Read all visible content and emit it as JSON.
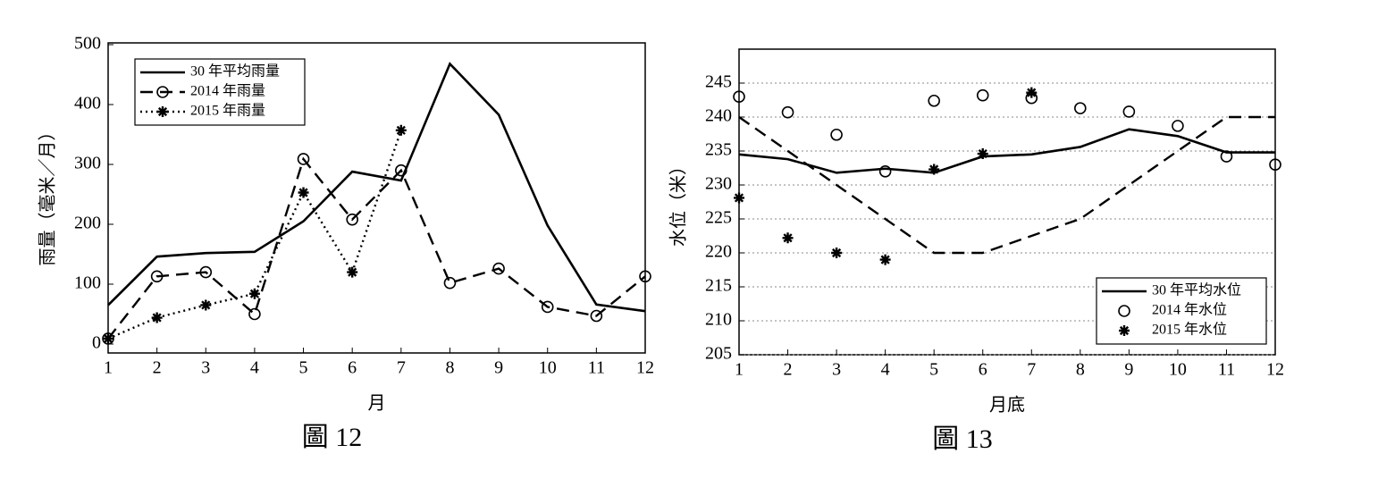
{
  "chart_data": [
    {
      "type": "line",
      "caption": "圖 12",
      "xlabel": "月",
      "ylabel": "雨量（毫米／月）",
      "x": [
        1,
        2,
        3,
        4,
        5,
        6,
        7,
        8,
        9,
        10,
        11,
        12
      ],
      "xlim": [
        1,
        12
      ],
      "xticks": [
        1,
        2,
        3,
        4,
        5,
        6,
        7,
        8,
        9,
        10,
        11,
        12
      ],
      "ylim": [
        0,
        500
      ],
      "yticks": [
        0,
        100,
        200,
        300,
        400,
        500
      ],
      "grid": false,
      "legend": "upper left",
      "series": [
        {
          "name": "30 年平均雨量",
          "color": "#000000",
          "line": "solid",
          "marker": "none",
          "values": [
            65,
            146,
            152,
            154,
            205,
            288,
            273,
            468,
            383,
            198,
            66,
            55
          ]
        },
        {
          "name": "2014 年雨量",
          "color": "#000000",
          "line": "dashed",
          "marker": "circle",
          "values": [
            9,
            113,
            120,
            50,
            309,
            208,
            290,
            102,
            126,
            62,
            47,
            113
          ]
        },
        {
          "name": "2015 年雨量",
          "color": "#000000",
          "line": "dotted",
          "marker": "star",
          "values": [
            9,
            44,
            65,
            84,
            253,
            120,
            357,
            null,
            null,
            null,
            null,
            null
          ]
        }
      ]
    },
    {
      "type": "line",
      "caption": "圖 13",
      "xlabel": "月底",
      "ylabel": "水位（米）",
      "x": [
        1,
        2,
        3,
        4,
        5,
        6,
        7,
        8,
        9,
        10,
        11,
        12
      ],
      "xlim": [
        1,
        12
      ],
      "xticks": [
        1,
        2,
        3,
        4,
        5,
        6,
        7,
        8,
        9,
        10,
        11,
        12
      ],
      "ylim": [
        205,
        250
      ],
      "yticks": [
        205,
        210,
        215,
        220,
        225,
        230,
        235,
        240,
        245
      ],
      "grid": true,
      "legend": "lower right",
      "series": [
        {
          "name": "30 年平均水位",
          "color": "#000000",
          "line": "solid",
          "marker": "none",
          "values": [
            234.5,
            233.8,
            231.8,
            232.4,
            231.8,
            234.2,
            234.5,
            235.6,
            238.2,
            237.2,
            234.8,
            234.8
          ]
        },
        {
          "color": "#000000",
          "line": "dashed",
          "marker": "none",
          "values": [
            240,
            235,
            230,
            225,
            220,
            220,
            222.5,
            225,
            230,
            235,
            240,
            240
          ]
        },
        {
          "name": "2014 年水位",
          "color": "#000000",
          "line": "none",
          "marker": "circle",
          "values": [
            243,
            240.7,
            237.4,
            232,
            242.4,
            243.2,
            242.8,
            241.3,
            240.8,
            238.7,
            234.2,
            233
          ]
        },
        {
          "name": "2015 年水位",
          "color": "#000000",
          "line": "none",
          "marker": "star",
          "values": [
            228.1,
            222.2,
            220,
            219,
            232.3,
            234.6,
            243.6,
            null,
            null,
            null,
            null,
            null
          ]
        }
      ]
    }
  ]
}
